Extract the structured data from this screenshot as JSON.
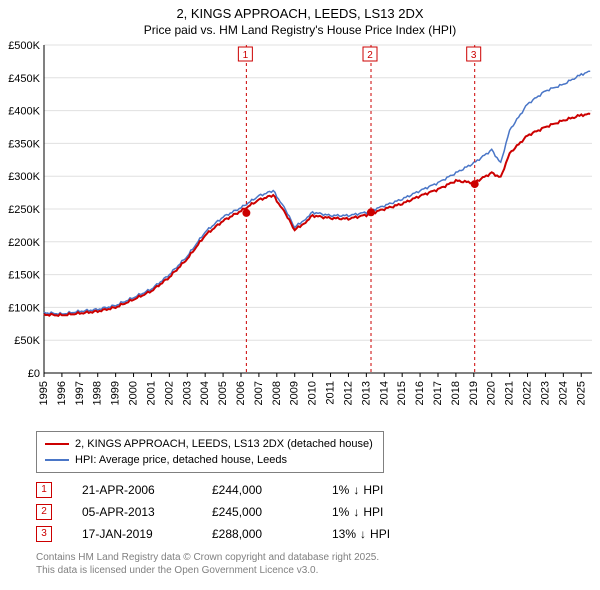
{
  "title_line1": "2, KINGS APPROACH, LEEDS, LS13 2DX",
  "title_line2": "Price paid vs. HM Land Registry's House Price Index (HPI)",
  "chart": {
    "type": "line",
    "background_color": "#ffffff",
    "plot_border_color": "#808080",
    "grid_color": "#e0e0e0",
    "axis_font_size": 11,
    "y": {
      "min": 0,
      "max": 500000,
      "tick_step": 50000,
      "ticks": [
        "£0",
        "£50K",
        "£100K",
        "£150K",
        "£200K",
        "£250K",
        "£300K",
        "£350K",
        "£400K",
        "£450K",
        "£500K"
      ]
    },
    "x": {
      "min": 1995,
      "max": 2025.6,
      "ticks": [
        1995,
        1996,
        1997,
        1998,
        1999,
        2000,
        2001,
        2002,
        2003,
        2004,
        2005,
        2006,
        2007,
        2008,
        2009,
        2010,
        2011,
        2012,
        2013,
        2014,
        2015,
        2016,
        2017,
        2018,
        2019,
        2020,
        2021,
        2022,
        2023,
        2024,
        2025
      ]
    },
    "series": [
      {
        "id": "hpi",
        "label": "HPI: Average price, detached house, Leeds",
        "color": "#4a76c7",
        "line_width": 1.5,
        "data": [
          [
            1995,
            92000
          ],
          [
            1996,
            90000
          ],
          [
            1997,
            94000
          ],
          [
            1998,
            97000
          ],
          [
            1999,
            103000
          ],
          [
            2000,
            115000
          ],
          [
            2001,
            128000
          ],
          [
            2002,
            150000
          ],
          [
            2003,
            178000
          ],
          [
            2004,
            215000
          ],
          [
            2005,
            238000
          ],
          [
            2006,
            252000
          ],
          [
            2007,
            270000
          ],
          [
            2007.8,
            278000
          ],
          [
            2008.5,
            248000
          ],
          [
            2009,
            222000
          ],
          [
            2009.6,
            235000
          ],
          [
            2010,
            245000
          ],
          [
            2011,
            240000
          ],
          [
            2012,
            240000
          ],
          [
            2013,
            245000
          ],
          [
            2014,
            255000
          ],
          [
            2015,
            265000
          ],
          [
            2016,
            278000
          ],
          [
            2017,
            290000
          ],
          [
            2018,
            305000
          ],
          [
            2019,
            320000
          ],
          [
            2020,
            340000
          ],
          [
            2020.5,
            320000
          ],
          [
            2021,
            370000
          ],
          [
            2022,
            410000
          ],
          [
            2023,
            430000
          ],
          [
            2024,
            440000
          ],
          [
            2025,
            455000
          ],
          [
            2025.5,
            460000
          ]
        ]
      },
      {
        "id": "subject",
        "label": "2, KINGS APPROACH, LEEDS, LS13 2DX (detached house)",
        "color": "#cc0000",
        "line_width": 2,
        "data": [
          [
            1995,
            89000
          ],
          [
            1996,
            88000
          ],
          [
            1997,
            91000
          ],
          [
            1998,
            94000
          ],
          [
            1999,
            100000
          ],
          [
            2000,
            112000
          ],
          [
            2001,
            125000
          ],
          [
            2002,
            146000
          ],
          [
            2003,
            174000
          ],
          [
            2004,
            210000
          ],
          [
            2005,
            232000
          ],
          [
            2006,
            247000
          ],
          [
            2007,
            264000
          ],
          [
            2007.8,
            271000
          ],
          [
            2008.5,
            242000
          ],
          [
            2009,
            218000
          ],
          [
            2009.6,
            230000
          ],
          [
            2010,
            240000
          ],
          [
            2011,
            236000
          ],
          [
            2012,
            235000
          ],
          [
            2013,
            241000
          ],
          [
            2014,
            250000
          ],
          [
            2015,
            258000
          ],
          [
            2016,
            270000
          ],
          [
            2017,
            280000
          ],
          [
            2018,
            293000
          ],
          [
            2019,
            290000
          ],
          [
            2020,
            305000
          ],
          [
            2020.5,
            298000
          ],
          [
            2021,
            335000
          ],
          [
            2022,
            362000
          ],
          [
            2023,
            375000
          ],
          [
            2024,
            385000
          ],
          [
            2025,
            393000
          ],
          [
            2025.5,
            395000
          ]
        ]
      }
    ],
    "markers": [
      {
        "n": "1",
        "x": 2006.3,
        "y": 244000,
        "line_color": "#cc0000",
        "line_style": "dashed"
      },
      {
        "n": "2",
        "x": 2013.26,
        "y": 245000,
        "line_color": "#cc0000",
        "line_style": "dashed"
      },
      {
        "n": "3",
        "x": 2019.05,
        "y": 288000,
        "line_color": "#cc0000",
        "line_style": "dashed"
      }
    ]
  },
  "legend": {
    "border_color": "#808080",
    "items": [
      {
        "color": "#cc0000",
        "label": "2, KINGS APPROACH, LEEDS, LS13 2DX (detached house)"
      },
      {
        "color": "#4a76c7",
        "label": "HPI: Average price, detached house, Leeds"
      }
    ]
  },
  "transactions": [
    {
      "n": "1",
      "date": "21-APR-2006",
      "price": "£244,000",
      "delta_pct": "1%",
      "delta_dir": "↓",
      "delta_suffix": "HPI",
      "color": "#cc0000"
    },
    {
      "n": "2",
      "date": "05-APR-2013",
      "price": "£245,000",
      "delta_pct": "1%",
      "delta_dir": "↓",
      "delta_suffix": "HPI",
      "color": "#cc0000"
    },
    {
      "n": "3",
      "date": "17-JAN-2019",
      "price": "£288,000",
      "delta_pct": "13%",
      "delta_dir": "↓",
      "delta_suffix": "HPI",
      "color": "#cc0000"
    }
  ],
  "footer": {
    "line1": "Contains HM Land Registry data © Crown copyright and database right 2025.",
    "line2": "This data is licensed under the Open Government Licence v3.0."
  }
}
